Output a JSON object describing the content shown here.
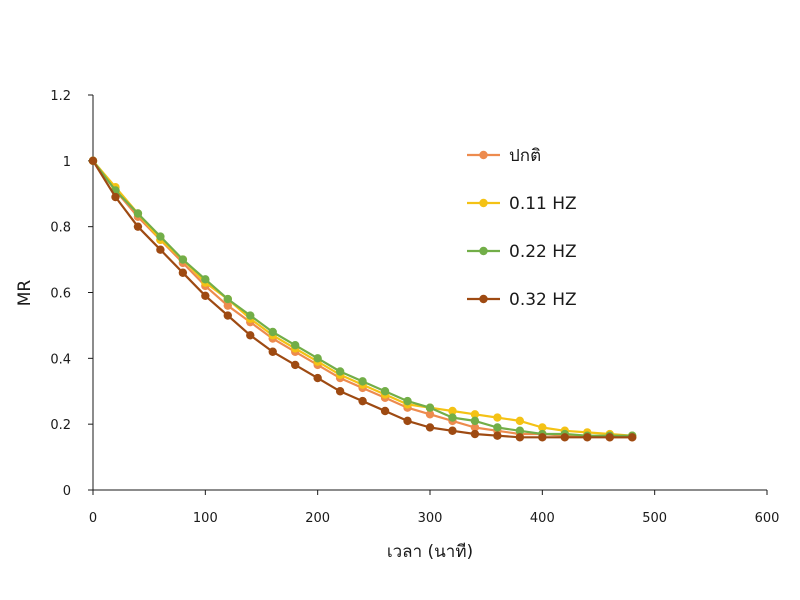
{
  "chart_data": {
    "type": "line",
    "title": "",
    "xlabel": "เวลา (นาที)",
    "ylabel": "MR",
    "xlim": [
      0,
      600
    ],
    "ylim": [
      0,
      1.2
    ],
    "xticks": [
      0,
      100,
      200,
      300,
      400,
      500,
      600
    ],
    "yticks": [
      0,
      0.2,
      0.4,
      0.6,
      0.8,
      1,
      1.2
    ],
    "ytick_labels": [
      "0",
      "0.2",
      "0.4",
      "0.6",
      "0.8",
      "1",
      "1.2"
    ],
    "grid": false,
    "legend_position": "right",
    "x": [
      0,
      20,
      40,
      60,
      80,
      100,
      120,
      140,
      160,
      180,
      200,
      220,
      240,
      260,
      280,
      300,
      320,
      340,
      360,
      380,
      400,
      420,
      440,
      460,
      480
    ],
    "series": [
      {
        "name": "ปกติ",
        "color": "#ED8B4E",
        "values": [
          1.0,
          0.91,
          0.83,
          0.76,
          0.69,
          0.62,
          0.56,
          0.51,
          0.46,
          0.42,
          0.38,
          0.34,
          0.31,
          0.28,
          0.25,
          0.23,
          0.21,
          0.19,
          0.18,
          0.17,
          0.17,
          0.165,
          0.165,
          0.16,
          0.16
        ]
      },
      {
        "name": "0.11 HZ",
        "color": "#F4C215",
        "values": [
          1.0,
          0.92,
          0.84,
          0.76,
          0.7,
          0.63,
          0.58,
          0.52,
          0.47,
          0.43,
          0.39,
          0.35,
          0.32,
          0.29,
          0.26,
          0.25,
          0.24,
          0.23,
          0.22,
          0.21,
          0.19,
          0.18,
          0.175,
          0.17,
          0.165
        ]
      },
      {
        "name": "0.22 HZ",
        "color": "#72AE48",
        "values": [
          1.0,
          0.91,
          0.84,
          0.77,
          0.7,
          0.64,
          0.58,
          0.53,
          0.48,
          0.44,
          0.4,
          0.36,
          0.33,
          0.3,
          0.27,
          0.25,
          0.22,
          0.21,
          0.19,
          0.18,
          0.17,
          0.17,
          0.165,
          0.165,
          0.165
        ]
      },
      {
        "name": "0.32 HZ",
        "color": "#9E4A12",
        "values": [
          1.0,
          0.89,
          0.8,
          0.73,
          0.66,
          0.59,
          0.53,
          0.47,
          0.42,
          0.38,
          0.34,
          0.3,
          0.27,
          0.24,
          0.21,
          0.19,
          0.18,
          0.17,
          0.165,
          0.16,
          0.16,
          0.16,
          0.16,
          0.16,
          0.16
        ]
      }
    ]
  }
}
